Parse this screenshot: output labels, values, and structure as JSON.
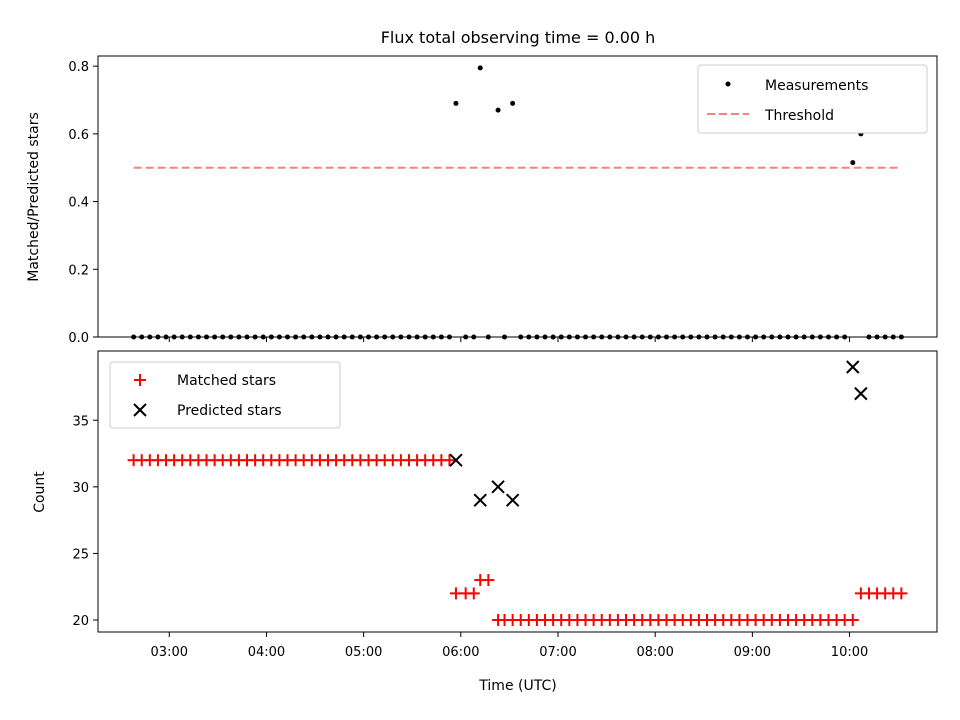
{
  "chart_data": [
    {
      "type": "scatter",
      "title": "Flux total observing time = 0.00 h",
      "ylabel": "Matched/Predicted stars",
      "xlabel": "",
      "xlim": [
        "02:16",
        "10:54"
      ],
      "ylim": [
        0,
        0.83
      ],
      "yticks": [
        0.0,
        0.2,
        0.4,
        0.6,
        0.8
      ],
      "ytick_labels": [
        "0.0",
        "0.2",
        "0.4",
        "0.6",
        "0.8"
      ],
      "xticks": [
        "03:00",
        "04:00",
        "05:00",
        "06:00",
        "07:00",
        "08:00",
        "09:00",
        "10:00"
      ],
      "show_xtick_labels": false,
      "grid": false,
      "legend": {
        "placement": "top-right",
        "entries": [
          {
            "label": "Measurements",
            "marker": "dot",
            "color": "#000000"
          },
          {
            "label": "Threshold",
            "marker": "dashed-line",
            "color": "#ff7f7f"
          }
        ]
      },
      "series": [
        {
          "name": "Measurements",
          "color": "#000000",
          "x": [
            "02:38",
            "02:43",
            "02:48",
            "02:53",
            "02:58",
            "03:03",
            "03:08",
            "03:13",
            "03:18",
            "03:23",
            "03:28",
            "03:33",
            "03:38",
            "03:43",
            "03:48",
            "03:53",
            "03:58",
            "04:03",
            "04:08",
            "04:13",
            "04:18",
            "04:23",
            "04:28",
            "04:33",
            "04:38",
            "04:43",
            "04:48",
            "04:53",
            "04:58",
            "05:03",
            "05:08",
            "05:13",
            "05:18",
            "05:23",
            "05:28",
            "05:33",
            "05:38",
            "05:43",
            "05:48",
            "05:53",
            "05:57",
            "06:03",
            "06:08",
            "06:12",
            "06:17",
            "06:23",
            "06:27",
            "06:32",
            "06:37",
            "06:42",
            "06:47",
            "06:52",
            "06:57",
            "07:02",
            "07:07",
            "07:12",
            "07:17",
            "07:22",
            "07:27",
            "07:32",
            "07:37",
            "07:42",
            "07:47",
            "07:52",
            "07:57",
            "08:02",
            "08:07",
            "08:12",
            "08:17",
            "08:22",
            "08:27",
            "08:32",
            "08:37",
            "08:42",
            "08:47",
            "08:52",
            "08:57",
            "09:02",
            "09:07",
            "09:12",
            "09:17",
            "09:22",
            "09:27",
            "09:32",
            "09:37",
            "09:42",
            "09:47",
            "09:52",
            "09:57",
            "10:02",
            "10:07",
            "10:12",
            "10:17",
            "10:22",
            "10:27",
            "10:32"
          ],
          "y": [
            0,
            0,
            0,
            0,
            0,
            0,
            0,
            0,
            0,
            0,
            0,
            0,
            0,
            0,
            0,
            0,
            0,
            0,
            0,
            0,
            0,
            0,
            0,
            0,
            0,
            0,
            0,
            0,
            0,
            0,
            0,
            0,
            0,
            0,
            0,
            0,
            0,
            0,
            0,
            0,
            0.69,
            0,
            0,
            0.795,
            0,
            0.67,
            0,
            0.69,
            0,
            0,
            0,
            0,
            0,
            0,
            0,
            0,
            0,
            0,
            0,
            0,
            0,
            0,
            0,
            0,
            0,
            0,
            0,
            0,
            0,
            0,
            0,
            0,
            0,
            0,
            0,
            0,
            0,
            0,
            0,
            0,
            0,
            0,
            0,
            0,
            0,
            0,
            0,
            0,
            0,
            0.515,
            0.6,
            0,
            0,
            0,
            0,
            0
          ]
        },
        {
          "name": "Threshold",
          "color": "#ff7f7f",
          "x": [
            "02:38",
            "10:32"
          ],
          "y": [
            0.5,
            0.5
          ]
        }
      ]
    },
    {
      "type": "scatter",
      "title": "",
      "ylabel": "Count",
      "xlabel": "Time (UTC)",
      "xlim": [
        "02:16",
        "10:54"
      ],
      "ylim": [
        19.1,
        40.2
      ],
      "yticks": [
        20,
        25,
        30,
        35
      ],
      "ytick_labels": [
        "20",
        "25",
        "30",
        "35"
      ],
      "xticks": [
        "03:00",
        "04:00",
        "05:00",
        "06:00",
        "07:00",
        "08:00",
        "09:00",
        "10:00"
      ],
      "xtick_labels": [
        "03:00",
        "04:00",
        "05:00",
        "06:00",
        "07:00",
        "08:00",
        "09:00",
        "10:00"
      ],
      "show_xtick_labels": true,
      "grid": false,
      "legend": {
        "placement": "top-left",
        "entries": [
          {
            "label": "Matched stars",
            "marker": "plus",
            "color": "#ff0000"
          },
          {
            "label": "Predicted stars",
            "marker": "x",
            "color": "#000000"
          }
        ]
      },
      "series": [
        {
          "name": "Matched stars",
          "color": "#ff0000",
          "x": [
            "02:38",
            "02:43",
            "02:48",
            "02:53",
            "02:58",
            "03:03",
            "03:08",
            "03:13",
            "03:18",
            "03:23",
            "03:28",
            "03:33",
            "03:38",
            "03:43",
            "03:48",
            "03:53",
            "03:58",
            "04:03",
            "04:08",
            "04:13",
            "04:18",
            "04:23",
            "04:28",
            "04:33",
            "04:38",
            "04:43",
            "04:48",
            "04:53",
            "04:58",
            "05:03",
            "05:08",
            "05:13",
            "05:18",
            "05:23",
            "05:28",
            "05:33",
            "05:38",
            "05:43",
            "05:48",
            "05:53",
            "05:57",
            "06:03",
            "06:08",
            "06:12",
            "06:17",
            "06:23",
            "06:27",
            "06:32",
            "06:37",
            "06:42",
            "06:47",
            "06:52",
            "06:57",
            "07:02",
            "07:07",
            "07:12",
            "07:17",
            "07:22",
            "07:27",
            "07:32",
            "07:37",
            "07:42",
            "07:47",
            "07:52",
            "07:57",
            "08:02",
            "08:07",
            "08:12",
            "08:17",
            "08:22",
            "08:27",
            "08:32",
            "08:37",
            "08:42",
            "08:47",
            "08:52",
            "08:57",
            "09:02",
            "09:07",
            "09:12",
            "09:17",
            "09:22",
            "09:27",
            "09:32",
            "09:37",
            "09:42",
            "09:47",
            "09:52",
            "09:57",
            "10:02",
            "10:07",
            "10:12",
            "10:17",
            "10:22",
            "10:27",
            "10:32"
          ],
          "y": [
            32,
            32,
            32,
            32,
            32,
            32,
            32,
            32,
            32,
            32,
            32,
            32,
            32,
            32,
            32,
            32,
            32,
            32,
            32,
            32,
            32,
            32,
            32,
            32,
            32,
            32,
            32,
            32,
            32,
            32,
            32,
            32,
            32,
            32,
            32,
            32,
            32,
            32,
            32,
            32,
            22,
            22,
            22,
            23,
            23,
            20,
            20,
            20,
            20,
            20,
            20,
            20,
            20,
            20,
            20,
            20,
            20,
            20,
            20,
            20,
            20,
            20,
            20,
            20,
            20,
            20,
            20,
            20,
            20,
            20,
            20,
            20,
            20,
            20,
            20,
            20,
            20,
            20,
            20,
            20,
            20,
            20,
            20,
            20,
            20,
            20,
            20,
            20,
            20,
            20,
            22,
            22,
            22,
            22,
            22,
            22
          ]
        },
        {
          "name": "Predicted stars",
          "color": "#000000",
          "x": [
            "05:57",
            "06:12",
            "06:23",
            "06:32",
            "10:02",
            "10:07"
          ],
          "y": [
            32,
            29,
            30,
            29,
            39,
            37
          ]
        }
      ]
    }
  ]
}
